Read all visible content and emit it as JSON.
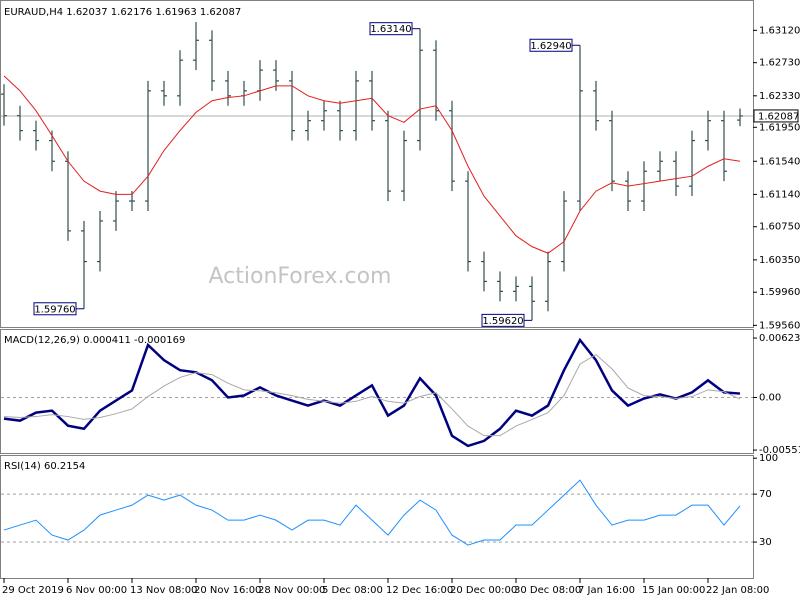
{
  "chart_data": [
    {
      "type": "ohlc",
      "title": "EURAUD,H4  1.62037 1.62176 1.61963 1.62087",
      "watermark": "ActionForex.com",
      "color": "#2f4f4f",
      "open": [
        1.6235,
        1.6209,
        1.6191,
        1.6179,
        1.6154,
        1.607,
        1.6033,
        1.6082,
        1.6106,
        1.6106,
        1.6239,
        1.6233,
        1.6276,
        1.63,
        1.6251,
        1.6233,
        1.6239,
        1.6264,
        1.6251,
        1.6191,
        1.6203,
        1.6215,
        1.6191,
        1.6251,
        1.6203,
        1.6118,
        1.6179,
        1.6288,
        1.6215,
        1.613,
        1.6033,
        1.6009,
        1.5997,
        1.6003,
        1.5985,
        1.6033,
        1.6106,
        1.6239,
        1.6203,
        1.613,
        1.6106,
        1.6142,
        1.6154,
        1.6124,
        1.6179,
        1.6203,
        1.62037
      ],
      "high": [
        1.6247,
        1.6221,
        1.6203,
        1.6191,
        1.6166,
        1.6082,
        1.6094,
        1.6118,
        1.6118,
        1.6251,
        1.6251,
        1.6288,
        1.6322,
        1.6312,
        1.6263,
        1.6251,
        1.6276,
        1.6276,
        1.6263,
        1.6215,
        1.6227,
        1.6227,
        1.6263,
        1.6263,
        1.6215,
        1.6191,
        1.6314,
        1.63,
        1.6227,
        1.6142,
        1.6045,
        1.6021,
        1.6015,
        1.6015,
        1.6045,
        1.6118,
        1.6294,
        1.6251,
        1.6215,
        1.6142,
        1.6154,
        1.6166,
        1.6166,
        1.6191,
        1.6215,
        1.6215,
        1.62176
      ],
      "low": [
        1.6197,
        1.6179,
        1.6167,
        1.6142,
        1.6058,
        1.5976,
        1.6021,
        1.607,
        1.6094,
        1.6094,
        1.6221,
        1.6221,
        1.6264,
        1.6239,
        1.6221,
        1.6221,
        1.6227,
        1.6239,
        1.6179,
        1.6179,
        1.6191,
        1.6179,
        1.6179,
        1.6191,
        1.6106,
        1.6106,
        1.6167,
        1.6203,
        1.6118,
        1.6021,
        1.5997,
        1.5985,
        1.5985,
        1.5962,
        1.5973,
        1.6021,
        1.6094,
        1.6191,
        1.6118,
        1.6094,
        1.6094,
        1.613,
        1.6112,
        1.6112,
        1.6167,
        1.613,
        1.61963
      ],
      "close": [
        1.6209,
        1.6191,
        1.6179,
        1.6154,
        1.607,
        1.6033,
        1.6082,
        1.6106,
        1.6106,
        1.6239,
        1.6233,
        1.6276,
        1.63,
        1.6251,
        1.6233,
        1.6239,
        1.6264,
        1.6251,
        1.6191,
        1.6203,
        1.6215,
        1.6191,
        1.6251,
        1.6203,
        1.6118,
        1.6179,
        1.6288,
        1.6215,
        1.613,
        1.6033,
        1.6009,
        1.5997,
        1.6003,
        1.5985,
        1.6033,
        1.6106,
        1.6239,
        1.6203,
        1.613,
        1.6106,
        1.6142,
        1.6154,
        1.6124,
        1.6179,
        1.6203,
        1.6142,
        1.62087
      ],
      "series": [
        {
          "color": "#e02020",
          "values": [
            1.6257,
            1.6239,
            1.6215,
            1.6185,
            1.6154,
            1.613,
            1.6118,
            1.6114,
            1.6114,
            1.6136,
            1.6167,
            1.6191,
            1.6213,
            1.6227,
            1.6231,
            1.6233,
            1.6239,
            1.6245,
            1.6245,
            1.6233,
            1.6227,
            1.6224,
            1.6227,
            1.623,
            1.6209,
            1.6201,
            1.6217,
            1.6221,
            1.6191,
            1.6148,
            1.6112,
            1.6088,
            1.6064,
            1.6051,
            1.6043,
            1.6057,
            1.6094,
            1.6118,
            1.6128,
            1.6124,
            1.6127,
            1.613,
            1.6133,
            1.6136,
            1.6148,
            1.6157,
            1.6154
          ]
        }
      ],
      "last_price": 1.62087,
      "annotations": [
        {
          "value": 1.5976,
          "label": "1.59760"
        },
        {
          "value": 1.6314,
          "label": "1.63140"
        },
        {
          "value": 1.6294,
          "label": "1.62940"
        },
        {
          "value": 1.5962,
          "label": "1.59620"
        }
      ],
      "ylim": [
        1.5954,
        1.6345
      ],
      "yticks": [
        {
          "value": 1.6312,
          "label": "1.63120"
        },
        {
          "value": 1.6273,
          "label": "1.62730"
        },
        {
          "value": 1.6233,
          "label": "1.62330"
        },
        {
          "value": 1.6195,
          "label": "1.61950"
        },
        {
          "value": 1.6154,
          "label": "1.61540"
        },
        {
          "value": 1.6114,
          "label": "1.61140"
        },
        {
          "value": 1.6075,
          "label": "1.60750"
        },
        {
          "value": 1.6035,
          "label": "1.60350"
        },
        {
          "value": 1.5996,
          "label": "1.59960"
        },
        {
          "value": 1.5956,
          "label": "1.59560"
        }
      ]
    },
    {
      "type": "line",
      "title": "MACD(12,26,9) 0.000411 -0.000169",
      "series": [
        {
          "color": "#000080",
          "width": 2.5,
          "values": [
            -0.00222,
            -0.00243,
            -0.00159,
            -0.00138,
            -0.00296,
            -0.00328,
            -0.00138,
            -0.00032,
            0.00074,
            0.0055,
            0.00391,
            0.00286,
            0.00264,
            0.0018,
            0,
            0.00021,
            0.00106,
            0.00021,
            -0.00032,
            -0.00085,
            -0.00032,
            -0.00085,
            0.00021,
            0.00127,
            -0.0019,
            -0.00085,
            0.00201,
            0.00021,
            -0.00402,
            -0.00508,
            -0.00455,
            -0.00328,
            -0.00138,
            -0.0019,
            -0.00085,
            0.00286,
            0.00603,
            0.00391,
            0.00074,
            -0.00085,
            -0.00011,
            0.00032,
            -0.00011,
            0.00053,
            0.0018,
            0.00053,
            0.000411
          ]
        },
        {
          "color": "#a9a9a9",
          "width": 1,
          "values": [
            -0.002,
            -0.0021,
            -0.002,
            -0.0018,
            -0.002,
            -0.0023,
            -0.0021,
            -0.0017,
            -0.0012,
            0.0001,
            0.0012,
            0.0021,
            0.0026,
            0.0024,
            0.0015,
            0.0008,
            0.0007,
            0.0005,
            0.0002,
            -0.0002,
            -0.0004,
            -0.0006,
            -0.0004,
            0.0001,
            -0.0004,
            -0.0006,
            0.0001,
            0.0005,
            -0.0012,
            -0.003,
            -0.004,
            -0.004,
            -0.003,
            -0.0023,
            -0.0016,
            0.0002,
            0.0035,
            0.0045,
            0.003,
            0.001,
            0.0002,
            0.0001,
            -0.0001,
            0.0001,
            0.0008,
            0.0006,
            -0.000169
          ]
        }
      ],
      "ylim": [
        -0.00582,
        0.00697
      ],
      "yticks": [
        0.006231,
        {
          "value": 0,
          "label": "0.00"
        },
        -0.005513
      ],
      "levels": [
        0
      ]
    },
    {
      "type": "line",
      "title": "RSI(14) 60.2154",
      "categories": [
        "29 Oct 2019",
        null,
        null,
        null,
        "6 Nov 00:00",
        null,
        null,
        null,
        "13 Nov 08:00",
        null,
        null,
        null,
        "20 Nov 16:00",
        null,
        null,
        null,
        "28 Nov 00:00",
        null,
        null,
        null,
        "5 Dec 08:00",
        null,
        null,
        null,
        "12 Dec 16:00",
        null,
        null,
        null,
        "20 Dec 00:00",
        null,
        null,
        null,
        "30 Dec 08:00",
        null,
        null,
        null,
        "7 Jan 16:00",
        null,
        null,
        null,
        "15 Jan 00:00",
        null,
        null,
        null,
        "22 Jan 08:00",
        null,
        null
      ],
      "series": [
        {
          "color": "#1e90ff",
          "width": 1,
          "values": [
            40,
            44.2,
            48.3,
            35.8,
            31.7,
            40,
            52.5,
            56.7,
            60.8,
            69.2,
            65,
            69.2,
            60.8,
            56.7,
            48.3,
            48.3,
            52.5,
            48.3,
            40,
            48.3,
            48.3,
            44.2,
            60.8,
            48.3,
            35.8,
            52.5,
            65,
            56.7,
            35.8,
            27.5,
            31.7,
            31.7,
            44.2,
            44.2,
            56.7,
            69.2,
            81.7,
            60.8,
            44.2,
            48.3,
            48.3,
            52.5,
            52.5,
            60.8,
            60.8,
            44.2,
            60.2154
          ]
        }
      ],
      "ylim": [
        0,
        101
      ],
      "yticks": [
        100,
        70,
        30
      ],
      "levels": [
        70,
        30
      ]
    }
  ]
}
